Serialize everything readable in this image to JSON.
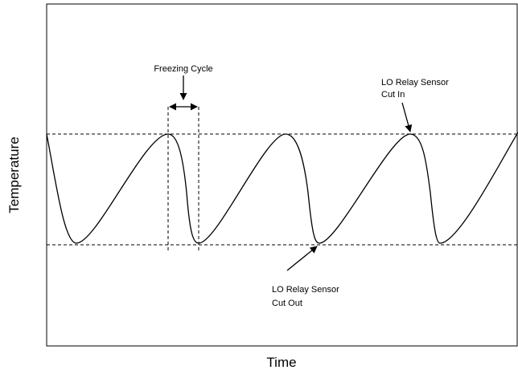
{
  "axes": {
    "x_label": "Time",
    "y_label": "Temperature"
  },
  "annotations": {
    "freezing_cycle": "Freezing Cycle",
    "cut_in": [
      "LO Relay Sensor",
      "Cut In"
    ],
    "cut_out": [
      "LO Relay Sensor",
      "Cut Out"
    ]
  }
}
